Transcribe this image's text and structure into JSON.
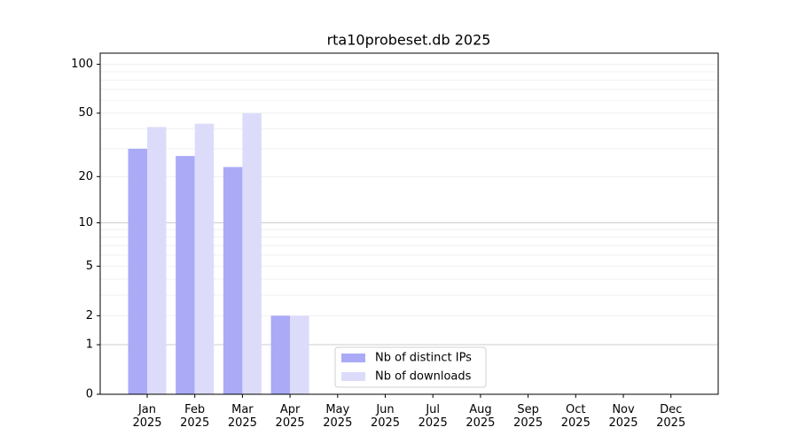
{
  "chart_data": {
    "type": "bar",
    "title": "rta10probeset.db 2025",
    "categories": [
      "Jan\n2025",
      "Feb\n2025",
      "Mar\n2025",
      "Apr\n2025",
      "May\n2025",
      "Jun\n2025",
      "Jul\n2025",
      "Aug\n2025",
      "Sep\n2025",
      "Oct\n2025",
      "Nov\n2025",
      "Dec\n2025"
    ],
    "series": [
      {
        "name": "Nb of distinct IPs",
        "color": "#aaaaf7",
        "values": [
          30,
          27,
          23,
          2,
          0,
          0,
          0,
          0,
          0,
          0,
          0,
          0
        ]
      },
      {
        "name": "Nb of downloads",
        "color": "#dcdcfa",
        "values": [
          41,
          43,
          50,
          2,
          0,
          0,
          0,
          0,
          0,
          0,
          0,
          0
        ]
      }
    ],
    "yscale": "log1p",
    "ylim": [
      0,
      117
    ],
    "yticks": [
      0,
      1,
      2,
      5,
      10,
      20,
      50,
      100
    ],
    "major_grid": [
      1,
      10
    ],
    "minor_grid": [
      3,
      4,
      6,
      7,
      8,
      9,
      30,
      40,
      60,
      70,
      80,
      90
    ],
    "grid": true,
    "legend": "lower center"
  }
}
